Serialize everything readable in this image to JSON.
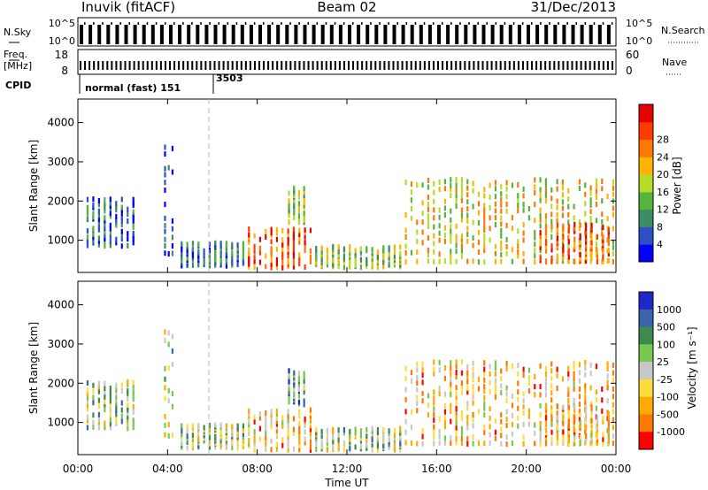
{
  "header": {
    "station": "Inuvik (fitACF)",
    "beam": "Beam 02",
    "date": "31/Dec/2013"
  },
  "top_panels": {
    "nsky_label": "N.Sky",
    "nsearch_label": "N.Search",
    "nsky_ticks": [
      "10^5",
      "10^0"
    ],
    "nsearch_ticks": [
      "10^5",
      "10^0"
    ],
    "freq_label_line1": "Freq.",
    "freq_label_line2": "[MHz]",
    "freq_ticks": [
      "18",
      "8"
    ],
    "nave_label": "Nave",
    "nave_ticks": [
      "60",
      "0"
    ],
    "cpid_label": "CPID",
    "cpid_entries": [
      {
        "name": "normal (fast) 151",
        "start_hour": 0
      },
      {
        "name": "3503",
        "start_hour": 5.8
      }
    ]
  },
  "x_axis": {
    "label": "Time UT",
    "ticks": [
      "00:00",
      "04:00",
      "08:00",
      "12:00",
      "16:00",
      "20:00",
      "00:00"
    ],
    "range_hours": [
      0,
      24
    ]
  },
  "power_panel": {
    "ylabel": "Slant Range [km]",
    "yticks": [
      "1000",
      "2000",
      "3000",
      "4000"
    ],
    "colorbar_label": "Power [dB]",
    "colorbar_ticks": [
      "4",
      "8",
      "12",
      "16",
      "20",
      "24",
      "28"
    ],
    "colors": [
      "#0000ff",
      "#2d50c8",
      "#3c8c64",
      "#55b43c",
      "#b4dc28",
      "#ffb400",
      "#ff7800",
      "#ff3c00",
      "#e60000"
    ]
  },
  "velocity_panel": {
    "ylabel": "Slant Range [km]",
    "yticks": [
      "1000",
      "2000",
      "3000",
      "4000"
    ],
    "colorbar_label": "Velocity [m s⁻¹]",
    "colorbar_ticks": [
      "1000",
      "500",
      "100",
      "25",
      "-25",
      "-100",
      "-500",
      "-1000"
    ],
    "colors": [
      "#1e28c8",
      "#3c64aa",
      "#3c8c50",
      "#78c850",
      "#c8c8c8",
      "#ffdc3c",
      "#ffaa00",
      "#ff7800",
      "#ff0000"
    ]
  },
  "chart_data": {
    "type": "heatmap",
    "title": "Inuvik (fitACF) Beam 02 31/Dec/2013",
    "xlabel": "Time UT",
    "ylabel": "Slant Range [km]",
    "x_unit": "hours UT",
    "xlim": [
      0,
      24
    ],
    "ylim": [
      180,
      4600
    ],
    "dashed_marker_hour": 5.8,
    "scatter_groups": [
      {
        "t_start": 0.3,
        "t_end": 2.6,
        "r_min": 800,
        "r_max": 2050,
        "power": "low-mid",
        "velocity": "mixed"
      },
      {
        "t_start": 3.8,
        "t_end": 4.3,
        "r_min": 600,
        "r_max": 3500,
        "power": "low",
        "velocity": "mixed"
      },
      {
        "t_start": 4.5,
        "t_end": 7.5,
        "r_min": 300,
        "r_max": 900,
        "power": "low-mid",
        "velocity": "mixed"
      },
      {
        "t_start": 7.5,
        "t_end": 10.5,
        "r_min": 250,
        "r_max": 1300,
        "power": "high",
        "velocity": "orange"
      },
      {
        "t_start": 9.3,
        "t_end": 10.2,
        "r_min": 1400,
        "r_max": 2300,
        "power": "mid",
        "velocity": "green"
      },
      {
        "t_start": 10.5,
        "t_end": 14.5,
        "r_min": 250,
        "r_max": 800,
        "power": "mid",
        "velocity": "mixed"
      },
      {
        "t_start": 14.5,
        "t_end": 24,
        "r_min": 400,
        "r_max": 2600,
        "power": "mid-high",
        "velocity": "orange"
      },
      {
        "t_start": 20.5,
        "t_end": 23.8,
        "r_min": 400,
        "r_max": 1400,
        "power": "high",
        "velocity": "orange"
      }
    ]
  }
}
